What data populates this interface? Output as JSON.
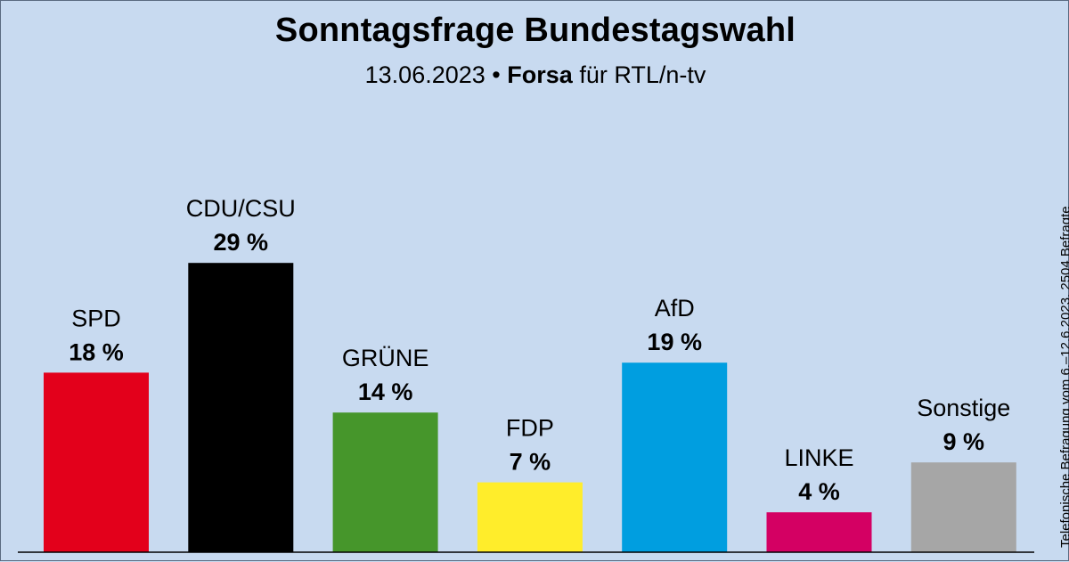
{
  "chart_data": {
    "type": "bar",
    "title": "Sonntagsfrage Bundestagswahl",
    "subtitle": {
      "date": "13.06.2023",
      "separator": "•",
      "institute": "Forsa",
      "client": "für RTL/n-tv"
    },
    "side_note": "Telefonische Befragung vom 6.–12.6.2023, 2504 Befragte",
    "categories": [
      "SPD",
      "CDU/CSU",
      "GRÜNE",
      "FDP",
      "AfD",
      "LINKE",
      "Sonstige"
    ],
    "values": [
      18,
      29,
      14,
      7,
      19,
      4,
      9
    ],
    "value_labels": [
      "18 %",
      "29 %",
      "14 %",
      "7 %",
      "19 %",
      "4 %",
      "9 %"
    ],
    "colors": [
      "#e3001b",
      "#000000",
      "#46962b",
      "#ffed2b",
      "#009ee0",
      "#d40063",
      "#a6a6a6"
    ],
    "ylim": [
      0,
      32
    ],
    "grid": false,
    "legend": "none"
  },
  "colors": {
    "background": "#c8daf0",
    "baseline": "#000000"
  }
}
